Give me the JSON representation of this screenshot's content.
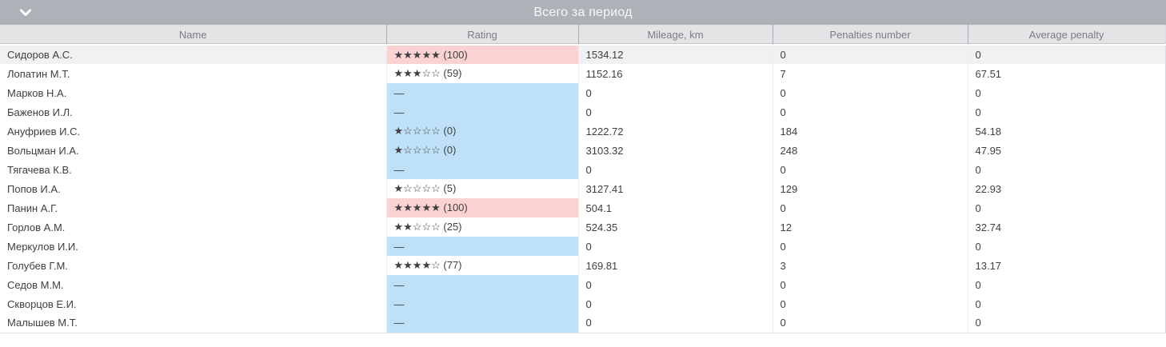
{
  "panel": {
    "title": "Всего за период",
    "collapse_icon": "chevron-down"
  },
  "colors": {
    "title_bar": "#aeb1b8",
    "header_bg": "#e3e4e6",
    "row_highlight": "#f0f1f3",
    "rating_pink": "#fad2d2",
    "rating_blue": "#bfe1f8"
  },
  "table": {
    "columns": [
      {
        "label": "Name"
      },
      {
        "label": "Rating"
      },
      {
        "label": "Mileage, km"
      },
      {
        "label": "Penalties number"
      },
      {
        "label": "Average penalty"
      }
    ],
    "rows": [
      {
        "name": "Сидоров А.С.",
        "rating": "★★★★★ (100)",
        "rating_bg": "pink",
        "mileage": "1534.12",
        "penalties": "0",
        "avg_penalty": "0",
        "highlighted": true
      },
      {
        "name": "Лопатин М.Т.",
        "rating": "★★★☆☆ (59)",
        "rating_bg": "none",
        "mileage": "1152.16",
        "penalties": "7",
        "avg_penalty": "67.51",
        "highlighted": false
      },
      {
        "name": "Марков Н.А.",
        "rating": "—",
        "rating_bg": "blue",
        "mileage": "0",
        "penalties": "0",
        "avg_penalty": "0",
        "highlighted": false
      },
      {
        "name": "Баженов И.Л.",
        "rating": "—",
        "rating_bg": "blue",
        "mileage": "0",
        "penalties": "0",
        "avg_penalty": "0",
        "highlighted": false
      },
      {
        "name": "Ануфриев И.С.",
        "rating": "★☆☆☆☆ (0)",
        "rating_bg": "blue",
        "mileage": "1222.72",
        "penalties": "184",
        "avg_penalty": "54.18",
        "highlighted": false
      },
      {
        "name": "Вольцман И.А.",
        "rating": "★☆☆☆☆ (0)",
        "rating_bg": "blue",
        "mileage": "3103.32",
        "penalties": "248",
        "avg_penalty": "47.95",
        "highlighted": false
      },
      {
        "name": "Тягачева К.В.",
        "rating": "—",
        "rating_bg": "blue",
        "mileage": "0",
        "penalties": "0",
        "avg_penalty": "0",
        "highlighted": false
      },
      {
        "name": "Попов И.А.",
        "rating": "★☆☆☆☆ (5)",
        "rating_bg": "none",
        "mileage": "3127.41",
        "penalties": "129",
        "avg_penalty": "22.93",
        "highlighted": false
      },
      {
        "name": "Панин А.Г.",
        "rating": "★★★★★ (100)",
        "rating_bg": "pink",
        "mileage": "504.1",
        "penalties": "0",
        "avg_penalty": "0",
        "highlighted": false
      },
      {
        "name": "Горлов А.М.",
        "rating": "★★☆☆☆ (25)",
        "rating_bg": "none",
        "mileage": "524.35",
        "penalties": "12",
        "avg_penalty": "32.74",
        "highlighted": false
      },
      {
        "name": "Меркулов И.И.",
        "rating": "—",
        "rating_bg": "blue",
        "mileage": "0",
        "penalties": "0",
        "avg_penalty": "0",
        "highlighted": false
      },
      {
        "name": "Голубев Г.М.",
        "rating": "★★★★☆ (77)",
        "rating_bg": "none",
        "mileage": "169.81",
        "penalties": "3",
        "avg_penalty": "13.17",
        "highlighted": false
      },
      {
        "name": "Седов М.М.",
        "rating": "—",
        "rating_bg": "blue",
        "mileage": "0",
        "penalties": "0",
        "avg_penalty": "0",
        "highlighted": false
      },
      {
        "name": "Скворцов Е.И.",
        "rating": "—",
        "rating_bg": "blue",
        "mileage": "0",
        "penalties": "0",
        "avg_penalty": "0",
        "highlighted": false
      },
      {
        "name": "Малышев М.Т.",
        "rating": "—",
        "rating_bg": "blue",
        "mileage": "0",
        "penalties": "0",
        "avg_penalty": "0",
        "highlighted": false
      }
    ]
  }
}
